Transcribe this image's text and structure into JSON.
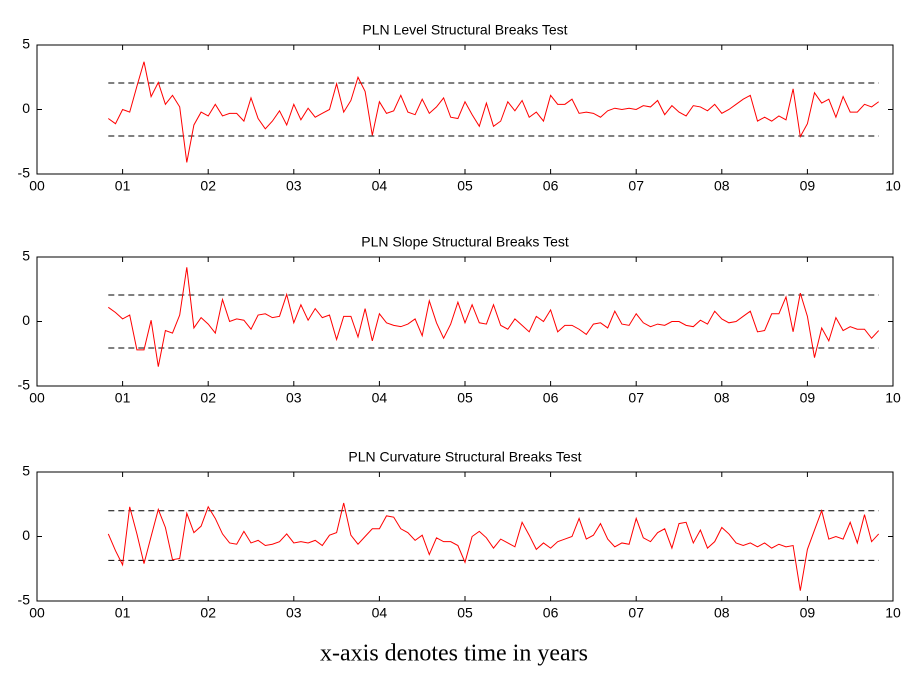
{
  "chart_data": [
    {
      "type": "line",
      "title": "PLN Level Structural Breaks Test",
      "x": [
        0.833,
        0.917,
        1,
        1.083,
        1.167,
        1.25,
        1.333,
        1.417,
        1.5,
        1.583,
        1.667,
        1.75,
        1.833,
        1.917,
        2,
        2.083,
        2.167,
        2.25,
        2.333,
        2.417,
        2.5,
        2.583,
        2.667,
        2.75,
        2.833,
        2.917,
        3,
        3.083,
        3.167,
        3.25,
        3.333,
        3.417,
        3.5,
        3.583,
        3.667,
        3.75,
        3.833,
        3.917,
        4,
        4.083,
        4.167,
        4.25,
        4.333,
        4.417,
        4.5,
        4.583,
        4.667,
        4.75,
        4.833,
        4.917,
        5,
        5.083,
        5.167,
        5.25,
        5.333,
        5.417,
        5.5,
        5.583,
        5.667,
        5.75,
        5.833,
        5.917,
        6,
        6.083,
        6.167,
        6.25,
        6.333,
        6.417,
        6.5,
        6.583,
        6.667,
        6.75,
        6.833,
        6.917,
        7,
        7.083,
        7.167,
        7.25,
        7.333,
        7.417,
        7.5,
        7.583,
        7.667,
        7.75,
        7.833,
        7.917,
        8,
        8.083,
        8.167,
        8.25,
        8.333,
        8.417,
        8.5,
        8.583,
        8.667,
        8.75,
        8.833,
        8.917,
        9,
        9.083,
        9.167,
        9.25,
        9.333,
        9.417,
        9.5,
        9.583,
        9.667,
        9.75,
        9.833
      ],
      "values": [
        -0.7,
        -1.1,
        0,
        -0.2,
        1.8,
        3.7,
        1.0,
        2.1,
        0.4,
        1.1,
        0.2,
        -4.1,
        -1.2,
        -0.2,
        -0.5,
        0.4,
        -0.5,
        -0.3,
        -0.3,
        -0.9,
        0.9,
        -0.7,
        -1.5,
        -0.9,
        -0.1,
        -1.2,
        0.4,
        -0.8,
        0.1,
        -0.6,
        -0.3,
        0.0,
        2.0,
        -0.2,
        0.7,
        2.5,
        1.4,
        -2.0,
        0.6,
        -0.3,
        -0.1,
        1.1,
        -0.2,
        -0.4,
        0.8,
        -0.3,
        0.2,
        0.9,
        -0.6,
        -0.7,
        0.6,
        -0.4,
        -1.3,
        0.5,
        -1.3,
        -0.9,
        0.6,
        -0.1,
        0.7,
        -0.6,
        -0.2,
        -0.9,
        1.1,
        0.4,
        0.4,
        0.8,
        -0.3,
        -0.2,
        -0.3,
        -0.6,
        -0.1,
        0.1,
        0.0,
        0.1,
        0.0,
        0.3,
        0.2,
        0.7,
        -0.4,
        0.3,
        -0.2,
        -0.5,
        0.3,
        0.2,
        -0.1,
        0.4,
        -0.3,
        0.0,
        0.4,
        0.8,
        1.1,
        -0.9,
        -0.6,
        -0.9,
        -0.5,
        -0.8,
        1.6,
        -2.1,
        -1.1,
        1.3,
        0.5,
        0.8,
        -0.6,
        1.0,
        -0.2,
        -0.2,
        0.4,
        0.2,
        0.6
      ],
      "color": "#ff0000",
      "ref_lines": [
        2.05,
        -2.05
      ],
      "ref_color": "#000000",
      "xlim": [
        0,
        10
      ],
      "ylim": [
        -5,
        5
      ],
      "yticks": [
        -5,
        0,
        5
      ],
      "xticks": [
        {
          "value": 0,
          "label": "00"
        },
        {
          "value": 1,
          "label": "01"
        },
        {
          "value": 2,
          "label": "02"
        },
        {
          "value": 3,
          "label": "03"
        },
        {
          "value": 4,
          "label": "04"
        },
        {
          "value": 5,
          "label": "05"
        },
        {
          "value": 6,
          "label": "06"
        },
        {
          "value": 7,
          "label": "07"
        },
        {
          "value": 8,
          "label": "08"
        },
        {
          "value": 9,
          "label": "09"
        },
        {
          "value": 10,
          "label": "10"
        }
      ]
    },
    {
      "type": "line",
      "title": "PLN Slope Structural Breaks Test",
      "x": [
        0.833,
        0.917,
        1,
        1.083,
        1.167,
        1.25,
        1.333,
        1.417,
        1.5,
        1.583,
        1.667,
        1.75,
        1.833,
        1.917,
        2,
        2.083,
        2.167,
        2.25,
        2.333,
        2.417,
        2.5,
        2.583,
        2.667,
        2.75,
        2.833,
        2.917,
        3,
        3.083,
        3.167,
        3.25,
        3.333,
        3.417,
        3.5,
        3.583,
        3.667,
        3.75,
        3.833,
        3.917,
        4,
        4.083,
        4.167,
        4.25,
        4.333,
        4.417,
        4.5,
        4.583,
        4.667,
        4.75,
        4.833,
        4.917,
        5,
        5.083,
        5.167,
        5.25,
        5.333,
        5.417,
        5.5,
        5.583,
        5.667,
        5.75,
        5.833,
        5.917,
        6,
        6.083,
        6.167,
        6.25,
        6.333,
        6.417,
        6.5,
        6.583,
        6.667,
        6.75,
        6.833,
        6.917,
        7,
        7.083,
        7.167,
        7.25,
        7.333,
        7.417,
        7.5,
        7.583,
        7.667,
        7.75,
        7.833,
        7.917,
        8,
        8.083,
        8.167,
        8.25,
        8.333,
        8.417,
        8.5,
        8.583,
        8.667,
        8.75,
        8.833,
        8.917,
        9,
        9.083,
        9.167,
        9.25,
        9.333,
        9.417,
        9.5,
        9.583,
        9.667,
        9.75,
        9.833
      ],
      "values": [
        1.1,
        0.7,
        0.2,
        0.5,
        -2.2,
        -2.2,
        0.1,
        -3.5,
        -0.7,
        -0.9,
        0.5,
        4.2,
        -0.5,
        0.3,
        -0.2,
        -0.9,
        1.7,
        0.0,
        0.2,
        0.1,
        -0.6,
        0.5,
        0.6,
        0.3,
        0.4,
        2.1,
        -0.1,
        1.3,
        0.1,
        1.0,
        0.3,
        0.5,
        -1.4,
        0.4,
        0.4,
        -1.2,
        1.0,
        -1.5,
        0.6,
        -0.1,
        -0.3,
        -0.4,
        -0.2,
        0.2,
        -1.1,
        1.6,
        -0.1,
        -1.3,
        -0.2,
        1.5,
        -0.1,
        1.3,
        -0.1,
        -0.2,
        1.3,
        -0.3,
        -0.6,
        0.2,
        -0.3,
        -0.8,
        0.4,
        0.0,
        0.9,
        -0.8,
        -0.3,
        -0.3,
        -0.6,
        -1.0,
        -0.2,
        -0.1,
        -0.5,
        0.8,
        -0.2,
        -0.3,
        0.6,
        -0.1,
        -0.4,
        -0.2,
        -0.3,
        0.0,
        0.0,
        -0.3,
        -0.4,
        0.1,
        -0.2,
        0.8,
        0.2,
        -0.1,
        0.0,
        0.4,
        0.8,
        -0.8,
        -0.7,
        0.6,
        0.6,
        1.9,
        -0.8,
        2.2,
        0.4,
        -2.8,
        -0.5,
        -1.5,
        0.3,
        -0.7,
        -0.4,
        -0.6,
        -0.6,
        -1.3,
        -0.7
      ],
      "color": "#ff0000",
      "ref_lines": [
        2.05,
        -2.05
      ],
      "ref_color": "#000000",
      "xlim": [
        0,
        10
      ],
      "ylim": [
        -5,
        5
      ],
      "yticks": [
        -5,
        0,
        5
      ],
      "xticks": [
        {
          "value": 0,
          "label": "00"
        },
        {
          "value": 1,
          "label": "01"
        },
        {
          "value": 2,
          "label": "02"
        },
        {
          "value": 3,
          "label": "03"
        },
        {
          "value": 4,
          "label": "04"
        },
        {
          "value": 5,
          "label": "05"
        },
        {
          "value": 6,
          "label": "06"
        },
        {
          "value": 7,
          "label": "07"
        },
        {
          "value": 8,
          "label": "08"
        },
        {
          "value": 9,
          "label": "09"
        },
        {
          "value": 10,
          "label": "10"
        }
      ]
    },
    {
      "type": "line",
      "title": "PLN Curvature Structural Breaks Test",
      "x": [
        0.833,
        0.917,
        1,
        1.083,
        1.167,
        1.25,
        1.333,
        1.417,
        1.5,
        1.583,
        1.667,
        1.75,
        1.833,
        1.917,
        2,
        2.083,
        2.167,
        2.25,
        2.333,
        2.417,
        2.5,
        2.583,
        2.667,
        2.75,
        2.833,
        2.917,
        3,
        3.083,
        3.167,
        3.25,
        3.333,
        3.417,
        3.5,
        3.583,
        3.667,
        3.75,
        3.833,
        3.917,
        4,
        4.083,
        4.167,
        4.25,
        4.333,
        4.417,
        4.5,
        4.583,
        4.667,
        4.75,
        4.833,
        4.917,
        5,
        5.083,
        5.167,
        5.25,
        5.333,
        5.417,
        5.5,
        5.583,
        5.667,
        5.75,
        5.833,
        5.917,
        6,
        6.083,
        6.167,
        6.25,
        6.333,
        6.417,
        6.5,
        6.583,
        6.667,
        6.75,
        6.833,
        6.917,
        7,
        7.083,
        7.167,
        7.25,
        7.333,
        7.417,
        7.5,
        7.583,
        7.667,
        7.75,
        7.833,
        7.917,
        8,
        8.083,
        8.167,
        8.25,
        8.333,
        8.417,
        8.5,
        8.583,
        8.667,
        8.75,
        8.833,
        8.917,
        9,
        9.083,
        9.167,
        9.25,
        9.333,
        9.417,
        9.5,
        9.583,
        9.667,
        9.75,
        9.833
      ],
      "values": [
        0.2,
        -1.1,
        -2.2,
        2.3,
        0.2,
        -2.1,
        0.0,
        2.1,
        0.7,
        -1.8,
        -1.7,
        1.8,
        0.3,
        0.8,
        2.3,
        1.4,
        0.2,
        -0.5,
        -0.6,
        0.4,
        -0.5,
        -0.3,
        -0.7,
        -0.6,
        -0.4,
        0.2,
        -0.5,
        -0.4,
        -0.5,
        -0.3,
        -0.7,
        0.1,
        0.3,
        2.6,
        0.1,
        -0.6,
        0.0,
        0.6,
        0.6,
        1.6,
        1.5,
        0.6,
        0.3,
        -0.3,
        0.1,
        -1.4,
        -0.1,
        -0.4,
        -0.4,
        -0.7,
        -2.0,
        0.0,
        0.4,
        -0.1,
        -0.9,
        -0.2,
        -0.5,
        -0.8,
        1.1,
        0.1,
        -1.0,
        -0.5,
        -0.9,
        -0.4,
        -0.2,
        0.0,
        1.4,
        -0.2,
        0.1,
        1.0,
        -0.2,
        -0.8,
        -0.5,
        -0.6,
        1.4,
        -0.1,
        -0.4,
        0.3,
        0.6,
        -0.9,
        1.0,
        1.1,
        -0.5,
        0.5,
        -0.9,
        -0.4,
        0.7,
        0.2,
        -0.5,
        -0.7,
        -0.5,
        -0.8,
        -0.5,
        -0.9,
        -0.6,
        -0.8,
        -0.7,
        -4.2,
        -1.0,
        0.5,
        2.0,
        -0.2,
        0.0,
        -0.2,
        1.1,
        -0.5,
        1.7,
        -0.4,
        0.2
      ],
      "color": "#ff0000",
      "ref_lines": [
        2.0,
        -1.85
      ],
      "ref_color": "#000000",
      "xlim": [
        0,
        10
      ],
      "ylim": [
        -5,
        5
      ],
      "yticks": [
        -5,
        0,
        5
      ],
      "xticks": [
        {
          "value": 0,
          "label": "00"
        },
        {
          "value": 1,
          "label": "01"
        },
        {
          "value": 2,
          "label": "02"
        },
        {
          "value": 3,
          "label": "03"
        },
        {
          "value": 4,
          "label": "04"
        },
        {
          "value": 5,
          "label": "05"
        },
        {
          "value": 6,
          "label": "06"
        },
        {
          "value": 7,
          "label": "07"
        },
        {
          "value": 8,
          "label": "08"
        },
        {
          "value": 9,
          "label": "09"
        },
        {
          "value": 10,
          "label": "10"
        }
      ]
    }
  ],
  "caption": "x-axis denotes time in years"
}
